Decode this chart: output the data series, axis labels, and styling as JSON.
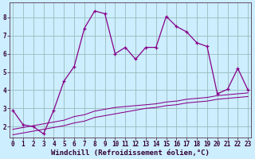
{
  "xlabel": "Windchill (Refroidissement éolien,°C)",
  "bg_color": "#cceeff",
  "line_color": "#880088",
  "grid_color": "#99bbbb",
  "x_main": [
    0,
    1,
    2,
    3,
    4,
    5,
    6,
    7,
    8,
    9,
    10,
    11,
    12,
    13,
    14,
    15,
    16,
    17,
    18,
    19,
    20,
    21,
    22,
    23
  ],
  "y_main": [
    2.9,
    2.1,
    2.0,
    1.6,
    2.9,
    4.5,
    5.3,
    7.4,
    8.35,
    8.2,
    6.0,
    6.35,
    5.7,
    6.35,
    6.35,
    8.05,
    7.5,
    7.2,
    6.6,
    6.4,
    3.8,
    4.05,
    5.2,
    4.0
  ],
  "x_line2": [
    0,
    1,
    2,
    3,
    4,
    5,
    6,
    7,
    8,
    9,
    10,
    11,
    12,
    13,
    14,
    15,
    16,
    17,
    18,
    19,
    20,
    21,
    22,
    23
  ],
  "y_line2": [
    1.55,
    1.65,
    1.75,
    1.85,
    1.95,
    2.05,
    2.2,
    2.3,
    2.5,
    2.6,
    2.7,
    2.8,
    2.9,
    3.0,
    3.05,
    3.15,
    3.2,
    3.3,
    3.35,
    3.4,
    3.5,
    3.55,
    3.6,
    3.65
  ],
  "x_line3": [
    0,
    1,
    2,
    3,
    4,
    5,
    6,
    7,
    8,
    9,
    10,
    11,
    12,
    13,
    14,
    15,
    16,
    17,
    18,
    19,
    20,
    21,
    22,
    23
  ],
  "y_line3": [
    1.85,
    1.95,
    2.05,
    2.15,
    2.25,
    2.35,
    2.55,
    2.65,
    2.85,
    2.95,
    3.05,
    3.1,
    3.15,
    3.2,
    3.25,
    3.35,
    3.4,
    3.5,
    3.55,
    3.6,
    3.7,
    3.75,
    3.8,
    3.85
  ],
  "ylim": [
    1.4,
    8.8
  ],
  "xlim": [
    -0.3,
    23.3
  ],
  "yticks": [
    2,
    3,
    4,
    5,
    6,
    7,
    8
  ],
  "xticks": [
    0,
    1,
    2,
    3,
    4,
    5,
    6,
    7,
    8,
    9,
    10,
    11,
    12,
    13,
    14,
    15,
    16,
    17,
    18,
    19,
    20,
    21,
    22,
    23
  ],
  "tick_fontsize": 5.5,
  "xlabel_fontsize": 6.5,
  "marker_size": 3.5,
  "lw_main": 0.9,
  "lw_sub": 0.75
}
